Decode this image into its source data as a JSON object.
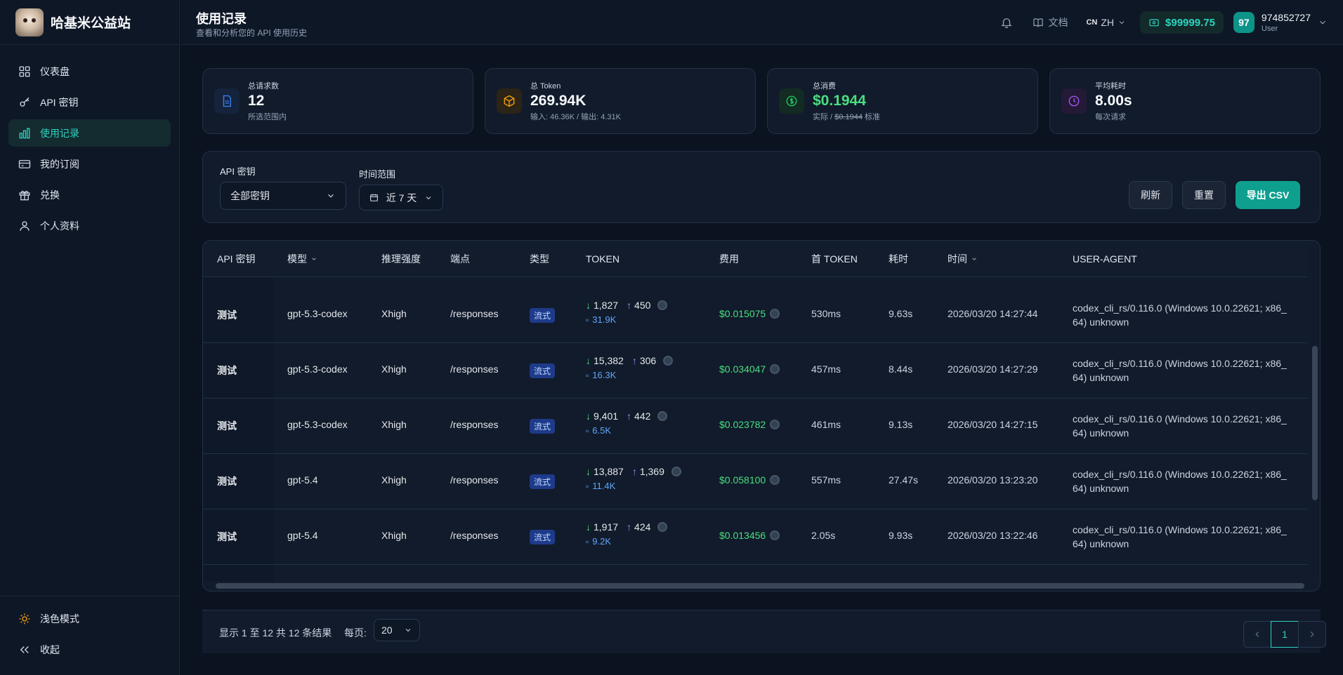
{
  "brand": {
    "name": "哈基米公益站"
  },
  "nav": [
    {
      "label": "仪表盘",
      "icon": "dashboard-icon"
    },
    {
      "label": "API 密钥",
      "icon": "key-icon"
    },
    {
      "label": "使用记录",
      "icon": "bar-chart-icon",
      "active": true
    },
    {
      "label": "我的订阅",
      "icon": "card-icon"
    },
    {
      "label": "兑换",
      "icon": "gift-icon"
    },
    {
      "label": "个人资料",
      "icon": "user-icon"
    }
  ],
  "sidebar_bottom": {
    "theme": "浅色模式",
    "collapse": "收起"
  },
  "header": {
    "title": "使用记录",
    "subtitle": "查看和分析您的 API 使用历史",
    "docs": "文档",
    "lang_flag": "CN",
    "lang": "ZH",
    "balance": "$99999.75",
    "avatar": "97",
    "user_id": "974852727",
    "user_role": "User"
  },
  "stats": [
    {
      "label": "总请求数",
      "value": "12",
      "sub": "所选范围内",
      "icon": "document-icon",
      "accent": "#3b82f6"
    },
    {
      "label": "总 Token",
      "value": "269.94K",
      "sub": "输入: 46.36K / 输出: 4.31K",
      "icon": "cube-icon",
      "accent": "#f59e0b"
    },
    {
      "label": "总消费",
      "value": "$0.1944",
      "sub_a": "实际 / ",
      "sub_b": "$0.1944",
      "sub_c": " 标准",
      "icon": "dollar-icon",
      "accent": "#22c55e"
    },
    {
      "label": "平均耗时",
      "value": "8.00s",
      "sub": "每次请求",
      "icon": "clock-icon",
      "accent": "#a855f7"
    }
  ],
  "filters": {
    "key_label": "API 密钥",
    "key_value": "全部密钥",
    "range_label": "时间范围",
    "range_value": "近 7 天",
    "refresh": "刷新",
    "reset": "重置",
    "export": "导出 CSV"
  },
  "table": {
    "columns": [
      "API 密钥",
      "模型",
      "推理强度",
      "端点",
      "类型",
      "TOKEN",
      "费用",
      "首 TOKEN",
      "耗时",
      "时间",
      "USER-AGENT"
    ],
    "rows": [
      {
        "key": "测试",
        "model": "gpt-5.3-codex",
        "effort": "Xhigh",
        "endpoint": "/responses",
        "type": "流式",
        "in": "1,827",
        "out": "450",
        "cache": "31.9K",
        "cost": "$0.015075",
        "first": "530ms",
        "dur": "9.63s",
        "time": "2026/03/20 14:27:44",
        "ua1": "codex_cli_rs/0.116.0 (Windows 10.0.22621; x86_",
        "ua2": "64) unknown"
      },
      {
        "key": "测试",
        "model": "gpt-5.3-codex",
        "effort": "Xhigh",
        "endpoint": "/responses",
        "type": "流式",
        "in": "15,382",
        "out": "306",
        "cache": "16.3K",
        "cost": "$0.034047",
        "first": "457ms",
        "dur": "8.44s",
        "time": "2026/03/20 14:27:29",
        "ua1": "codex_cli_rs/0.116.0 (Windows 10.0.22621; x86_",
        "ua2": "64) unknown"
      },
      {
        "key": "测试",
        "model": "gpt-5.3-codex",
        "effort": "Xhigh",
        "endpoint": "/responses",
        "type": "流式",
        "in": "9,401",
        "out": "442",
        "cache": "6.5K",
        "cost": "$0.023782",
        "first": "461ms",
        "dur": "9.13s",
        "time": "2026/03/20 14:27:15",
        "ua1": "codex_cli_rs/0.116.0 (Windows 10.0.22621; x86_",
        "ua2": "64) unknown"
      },
      {
        "key": "测试",
        "model": "gpt-5.4",
        "effort": "Xhigh",
        "endpoint": "/responses",
        "type": "流式",
        "in": "13,887",
        "out": "1,369",
        "cache": "11.4K",
        "cost": "$0.058100",
        "first": "557ms",
        "dur": "27.47s",
        "time": "2026/03/20 13:23:20",
        "ua1": "codex_cli_rs/0.116.0 (Windows 10.0.22621; x86_",
        "ua2": "64) unknown"
      },
      {
        "key": "测试",
        "model": "gpt-5.4",
        "effort": "Xhigh",
        "endpoint": "/responses",
        "type": "流式",
        "in": "1,917",
        "out": "424",
        "cache": "9.2K",
        "cost": "$0.013456",
        "first": "2.05s",
        "dur": "9.93s",
        "time": "2026/03/20 13:22:46",
        "ua1": "codex_cli_rs/0.116.0 (Windows 10.0.22621; x86_",
        "ua2": "64) unknown"
      }
    ]
  },
  "pager": {
    "summary": "显示 1 至 12 共 12 条结果",
    "per_page_label": "每页:",
    "per_page": "20",
    "page": "1"
  },
  "colors": {
    "accent": "#2dd4bf",
    "cost": "#4ade80",
    "badge": "#1e3a8a"
  }
}
